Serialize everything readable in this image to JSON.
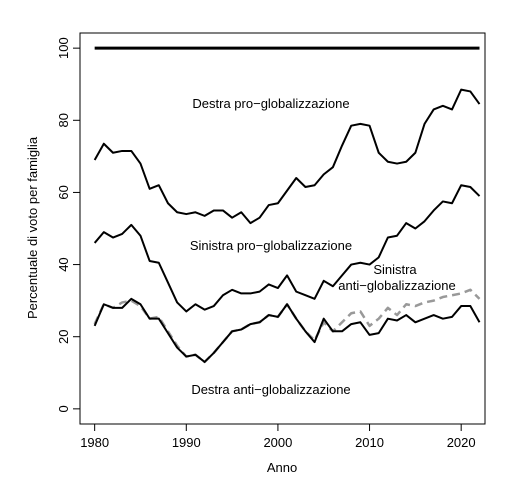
{
  "chart_data": {
    "type": "line",
    "x_label": "Anno",
    "y_label": "Percentuale di voto per famiglia",
    "x": [
      1980,
      1981,
      1982,
      1983,
      1984,
      1985,
      1986,
      1987,
      1988,
      1989,
      1990,
      1991,
      1992,
      1993,
      1994,
      1995,
      1996,
      1997,
      1998,
      1999,
      2000,
      2001,
      2002,
      2003,
      2004,
      2005,
      2006,
      2007,
      2008,
      2009,
      2010,
      2011,
      2012,
      2013,
      2014,
      2015,
      2016,
      2017,
      2018,
      2019,
      2020,
      2021,
      2022
    ],
    "series": [
      {
        "color": "#000000",
        "line_width": 3,
        "values": [
          100,
          100,
          100,
          100,
          100,
          100,
          100,
          100,
          100,
          100,
          100,
          100,
          100,
          100,
          100,
          100,
          100,
          100,
          100,
          100,
          100,
          100,
          100,
          100,
          100,
          100,
          100,
          100,
          100,
          100,
          100,
          100,
          100,
          100,
          100,
          100,
          100,
          100,
          100,
          100,
          100,
          100,
          100
        ]
      },
      {
        "color": "#000000",
        "line_width": 2,
        "values": [
          69,
          73.5,
          71,
          71.5,
          71.5,
          68,
          61,
          62,
          57,
          54.5,
          54,
          54.5,
          53.5,
          55,
          55,
          53,
          54.5,
          51.5,
          53,
          56.5,
          57,
          60.5,
          64,
          61.5,
          62,
          65,
          67,
          73,
          78.5,
          79,
          78.5,
          71,
          68.5,
          68,
          68.5,
          71,
          79,
          83,
          84,
          83,
          88.5,
          88,
          84.5
        ]
      },
      {
        "color": "#000000",
        "line_width": 2,
        "values": [
          46,
          49,
          47.5,
          48.5,
          51,
          48,
          41,
          40.5,
          35,
          29.5,
          27,
          29,
          27.5,
          28.5,
          31.5,
          33,
          32,
          32,
          32.5,
          34.5,
          33.5,
          37,
          32.5,
          31.5,
          30.5,
          35.5,
          34,
          37,
          40,
          40.5,
          40,
          42,
          47.5,
          48,
          51.5,
          50,
          52,
          55,
          57.5,
          57,
          62,
          61.5,
          59
        ]
      },
      {
        "color": "#999999",
        "line_width": 2.5,
        "dashed": true,
        "values": [
          23.5,
          29,
          28,
          29.5,
          30,
          28.5,
          25,
          25.5,
          21.5,
          17.5,
          14.5,
          15,
          13,
          15.5,
          18.5,
          21.5,
          22,
          23.5,
          24,
          26,
          25.5,
          29,
          25,
          21.5,
          19,
          24,
          21.5,
          24,
          26.5,
          27,
          23,
          25,
          28,
          26,
          29,
          28.5,
          29.5,
          30,
          31,
          31.5,
          32,
          33,
          30.5
        ]
      },
      {
        "color": "#000000",
        "line_width": 2,
        "values": [
          23,
          29,
          28,
          28,
          30.5,
          29,
          25,
          25,
          21,
          17,
          14.5,
          15,
          13,
          15.5,
          18.5,
          21.5,
          22,
          23.5,
          24,
          26,
          25.5,
          29,
          25,
          21.5,
          18.5,
          25,
          21.5,
          21.5,
          23.5,
          24,
          20.5,
          21,
          25,
          24.5,
          26,
          24,
          25,
          26,
          25,
          25.5,
          28.5,
          28.5,
          24
        ]
      }
    ],
    "annotations": [
      "Destra pro−globalizzazione",
      "Sinistra pro−globalizzazione",
      "Sinistra",
      "anti−globalizzazione",
      "Destra anti−globalizzazione"
    ],
    "xlim": [
      1978.4,
      2022.6
    ],
    "ylim": [
      -4.2,
      104.2
    ],
    "xticks": [
      1980,
      1990,
      2000,
      2010,
      2020
    ],
    "yticks": [
      0,
      20,
      40,
      60,
      80,
      100
    ]
  }
}
